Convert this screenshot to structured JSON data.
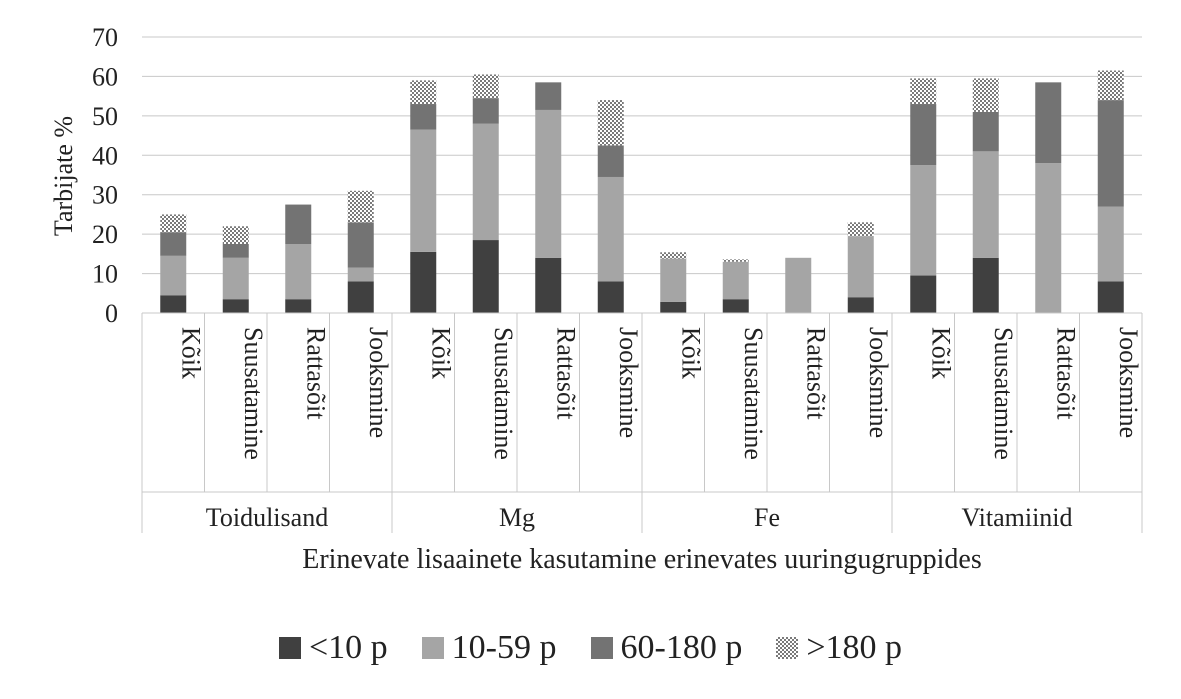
{
  "chart_data": {
    "type": "bar",
    "stacked": true,
    "ylabel": "Tarbijate %",
    "xlabel": "Erinevate lisaainete kasutamine erinevates uuringugruppides",
    "ylim": [
      0,
      70
    ],
    "yticks": [
      0,
      10,
      20,
      30,
      40,
      50,
      60,
      70
    ],
    "grid": true,
    "legend_position": "bottom",
    "groups": [
      {
        "label": "Toidulisand",
        "categories": [
          "Kõik",
          "Suusatamine",
          "Rattasõit",
          "Jooksmine"
        ]
      },
      {
        "label": "Mg",
        "categories": [
          "Kõik",
          "Suusatamine",
          "Rattasõit",
          "Jooksmine"
        ]
      },
      {
        "label": "Fe",
        "categories": [
          "Kõik",
          "Suusatamine",
          "Rattasõit",
          "Jooksmine"
        ]
      },
      {
        "label": "Vitamiinid",
        "categories": [
          "Kõik",
          "Suusatamine",
          "Rattasõit",
          "Jooksmine"
        ]
      }
    ],
    "series": [
      {
        "name": "<10 p",
        "color": "#404040",
        "pattern": "solid",
        "values": [
          4.5,
          3.5,
          3.5,
          8,
          15.5,
          18.5,
          14,
          8,
          2.8,
          3.5,
          0,
          4,
          9.5,
          14,
          0,
          8
        ]
      },
      {
        "name": "10-59 p",
        "color": "#a5a5a5",
        "pattern": "solid",
        "values": [
          10,
          10.5,
          14,
          3.5,
          31,
          29.5,
          37.5,
          26.5,
          11,
          9.5,
          14,
          15.5,
          28,
          27,
          38,
          19
        ]
      },
      {
        "name": "60-180 p",
        "color": "#737373",
        "pattern": "solid",
        "values": [
          6,
          3.5,
          10,
          11.5,
          6.5,
          6.5,
          7,
          8,
          0,
          0,
          0,
          0,
          15.5,
          10,
          20.5,
          27
        ]
      },
      {
        "name": ">180 p",
        "color": "#8c8c8c",
        "pattern": "checker",
        "values": [
          4.5,
          4.5,
          0,
          8,
          6,
          6,
          0,
          11.5,
          1.6,
          0.6,
          0,
          3.5,
          6.5,
          8.5,
          0,
          7.5
        ]
      }
    ]
  }
}
